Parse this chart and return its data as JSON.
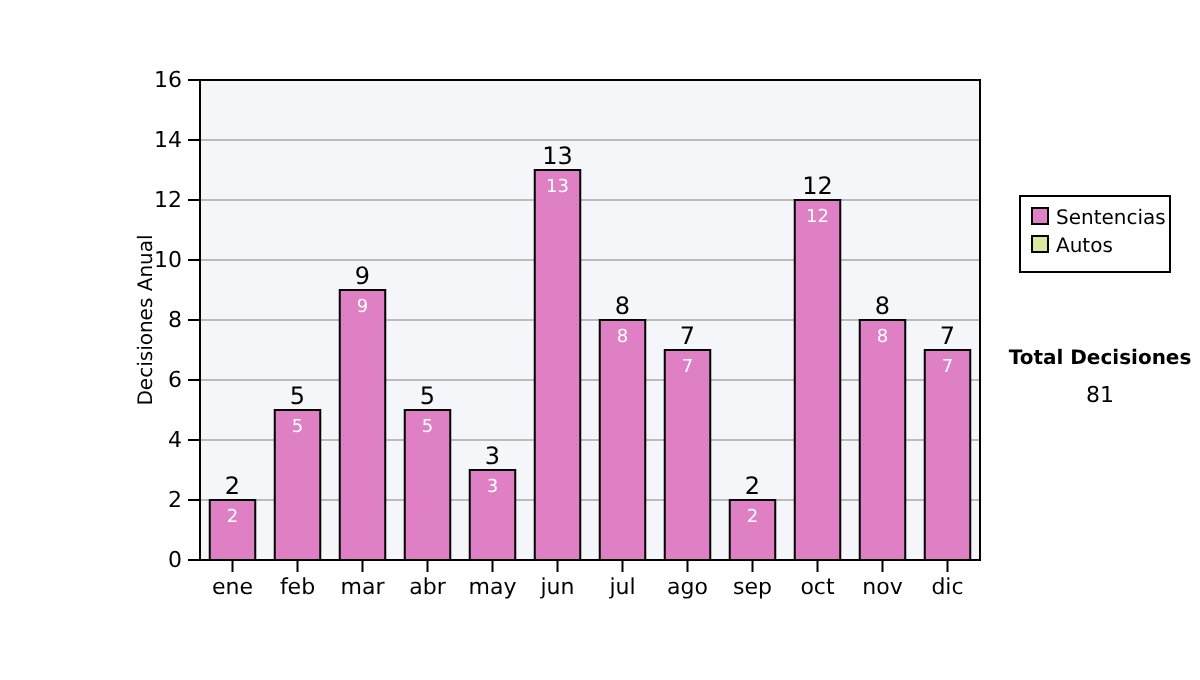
{
  "chart_data": {
    "type": "bar",
    "ylabel": "Decisiones Anual",
    "categories": [
      "ene",
      "feb",
      "mar",
      "abr",
      "may",
      "jun",
      "jul",
      "ago",
      "sep",
      "oct",
      "nov",
      "dic"
    ],
    "series": [
      {
        "name": "Sentencias",
        "color": "#df80c4",
        "values": [
          2,
          5,
          9,
          5,
          3,
          13,
          8,
          7,
          2,
          12,
          8,
          7
        ],
        "value_labels": [
          "2",
          "5",
          "9",
          "5",
          "3",
          "13",
          "8",
          "7",
          "2",
          "12",
          "8",
          "7"
        ]
      },
      {
        "name": "Autos",
        "color": "#d8eaa0",
        "values": [
          0,
          0,
          0,
          0,
          0,
          0,
          0,
          0,
          0,
          0,
          0,
          0
        ]
      }
    ],
    "stacked": true,
    "totals": [
      "2",
      "5",
      "9",
      "5",
      "3",
      "13",
      "8",
      "7",
      "2",
      "12",
      "8",
      "7"
    ],
    "ylim": [
      0,
      16
    ],
    "yticks": [
      0,
      2,
      4,
      6,
      8,
      10,
      12,
      14,
      16
    ],
    "grid": "y",
    "legend": "right",
    "annotations": [
      "Total Decisiones",
      "81"
    ]
  }
}
